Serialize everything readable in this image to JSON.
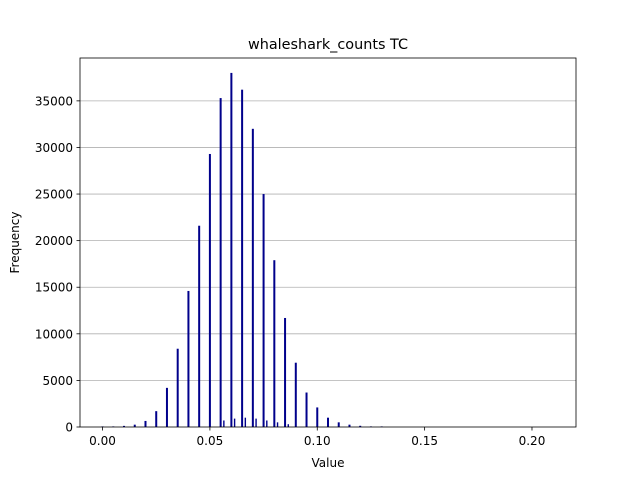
{
  "chart_data": {
    "type": "bar",
    "title": "whaleshark_counts TC",
    "xlabel": "Value",
    "ylabel": "Frequency",
    "xlim": [
      -0.0105,
      0.2205
    ],
    "ylim": [
      0,
      39600
    ],
    "x_ticks": [
      0.0,
      0.05,
      0.1,
      0.15,
      0.2
    ],
    "x_tick_labels": [
      "0.00",
      "0.05",
      "0.10",
      "0.15",
      "0.20"
    ],
    "y_ticks": [
      0,
      5000,
      10000,
      15000,
      20000,
      25000,
      30000,
      35000
    ],
    "y_tick_labels": [
      "0",
      "5000",
      "10000",
      "15000",
      "20000",
      "25000",
      "30000",
      "35000"
    ],
    "grid": "y",
    "bar_color": "#00008b",
    "bins": [
      {
        "x": 0.0,
        "value": 40
      },
      {
        "x": 0.005,
        "value": 60
      },
      {
        "x": 0.01,
        "value": 120
      },
      {
        "x": 0.015,
        "value": 250
      },
      {
        "x": 0.02,
        "value": 650
      },
      {
        "x": 0.025,
        "value": 1700
      },
      {
        "x": 0.03,
        "value": 4200
      },
      {
        "x": 0.035,
        "value": 8400
      },
      {
        "x": 0.04,
        "value": 14600
      },
      {
        "x": 0.045,
        "value": 21600
      },
      {
        "x": 0.05,
        "value": 29300
      },
      {
        "x": 0.055,
        "value": 35300
      },
      {
        "x": 0.06,
        "value": 38000
      },
      {
        "x": 0.065,
        "value": 36200
      },
      {
        "x": 0.07,
        "value": 32000
      },
      {
        "x": 0.075,
        "value": 25000
      },
      {
        "x": 0.08,
        "value": 17900
      },
      {
        "x": 0.085,
        "value": 11700
      },
      {
        "x": 0.09,
        "value": 6900
      },
      {
        "x": 0.095,
        "value": 3700
      },
      {
        "x": 0.1,
        "value": 2100
      },
      {
        "x": 0.105,
        "value": 1000
      },
      {
        "x": 0.11,
        "value": 500
      },
      {
        "x": 0.115,
        "value": 250
      },
      {
        "x": 0.12,
        "value": 130
      },
      {
        "x": 0.125,
        "value": 60
      },
      {
        "x": 0.13,
        "value": 30
      }
    ],
    "minor_bins": [
      {
        "x": 0.0565,
        "value": 700
      },
      {
        "x": 0.0615,
        "value": 900
      },
      {
        "x": 0.0665,
        "value": 1000
      },
      {
        "x": 0.0715,
        "value": 900
      },
      {
        "x": 0.0765,
        "value": 700
      },
      {
        "x": 0.0815,
        "value": 500
      },
      {
        "x": 0.0865,
        "value": 300
      }
    ]
  }
}
